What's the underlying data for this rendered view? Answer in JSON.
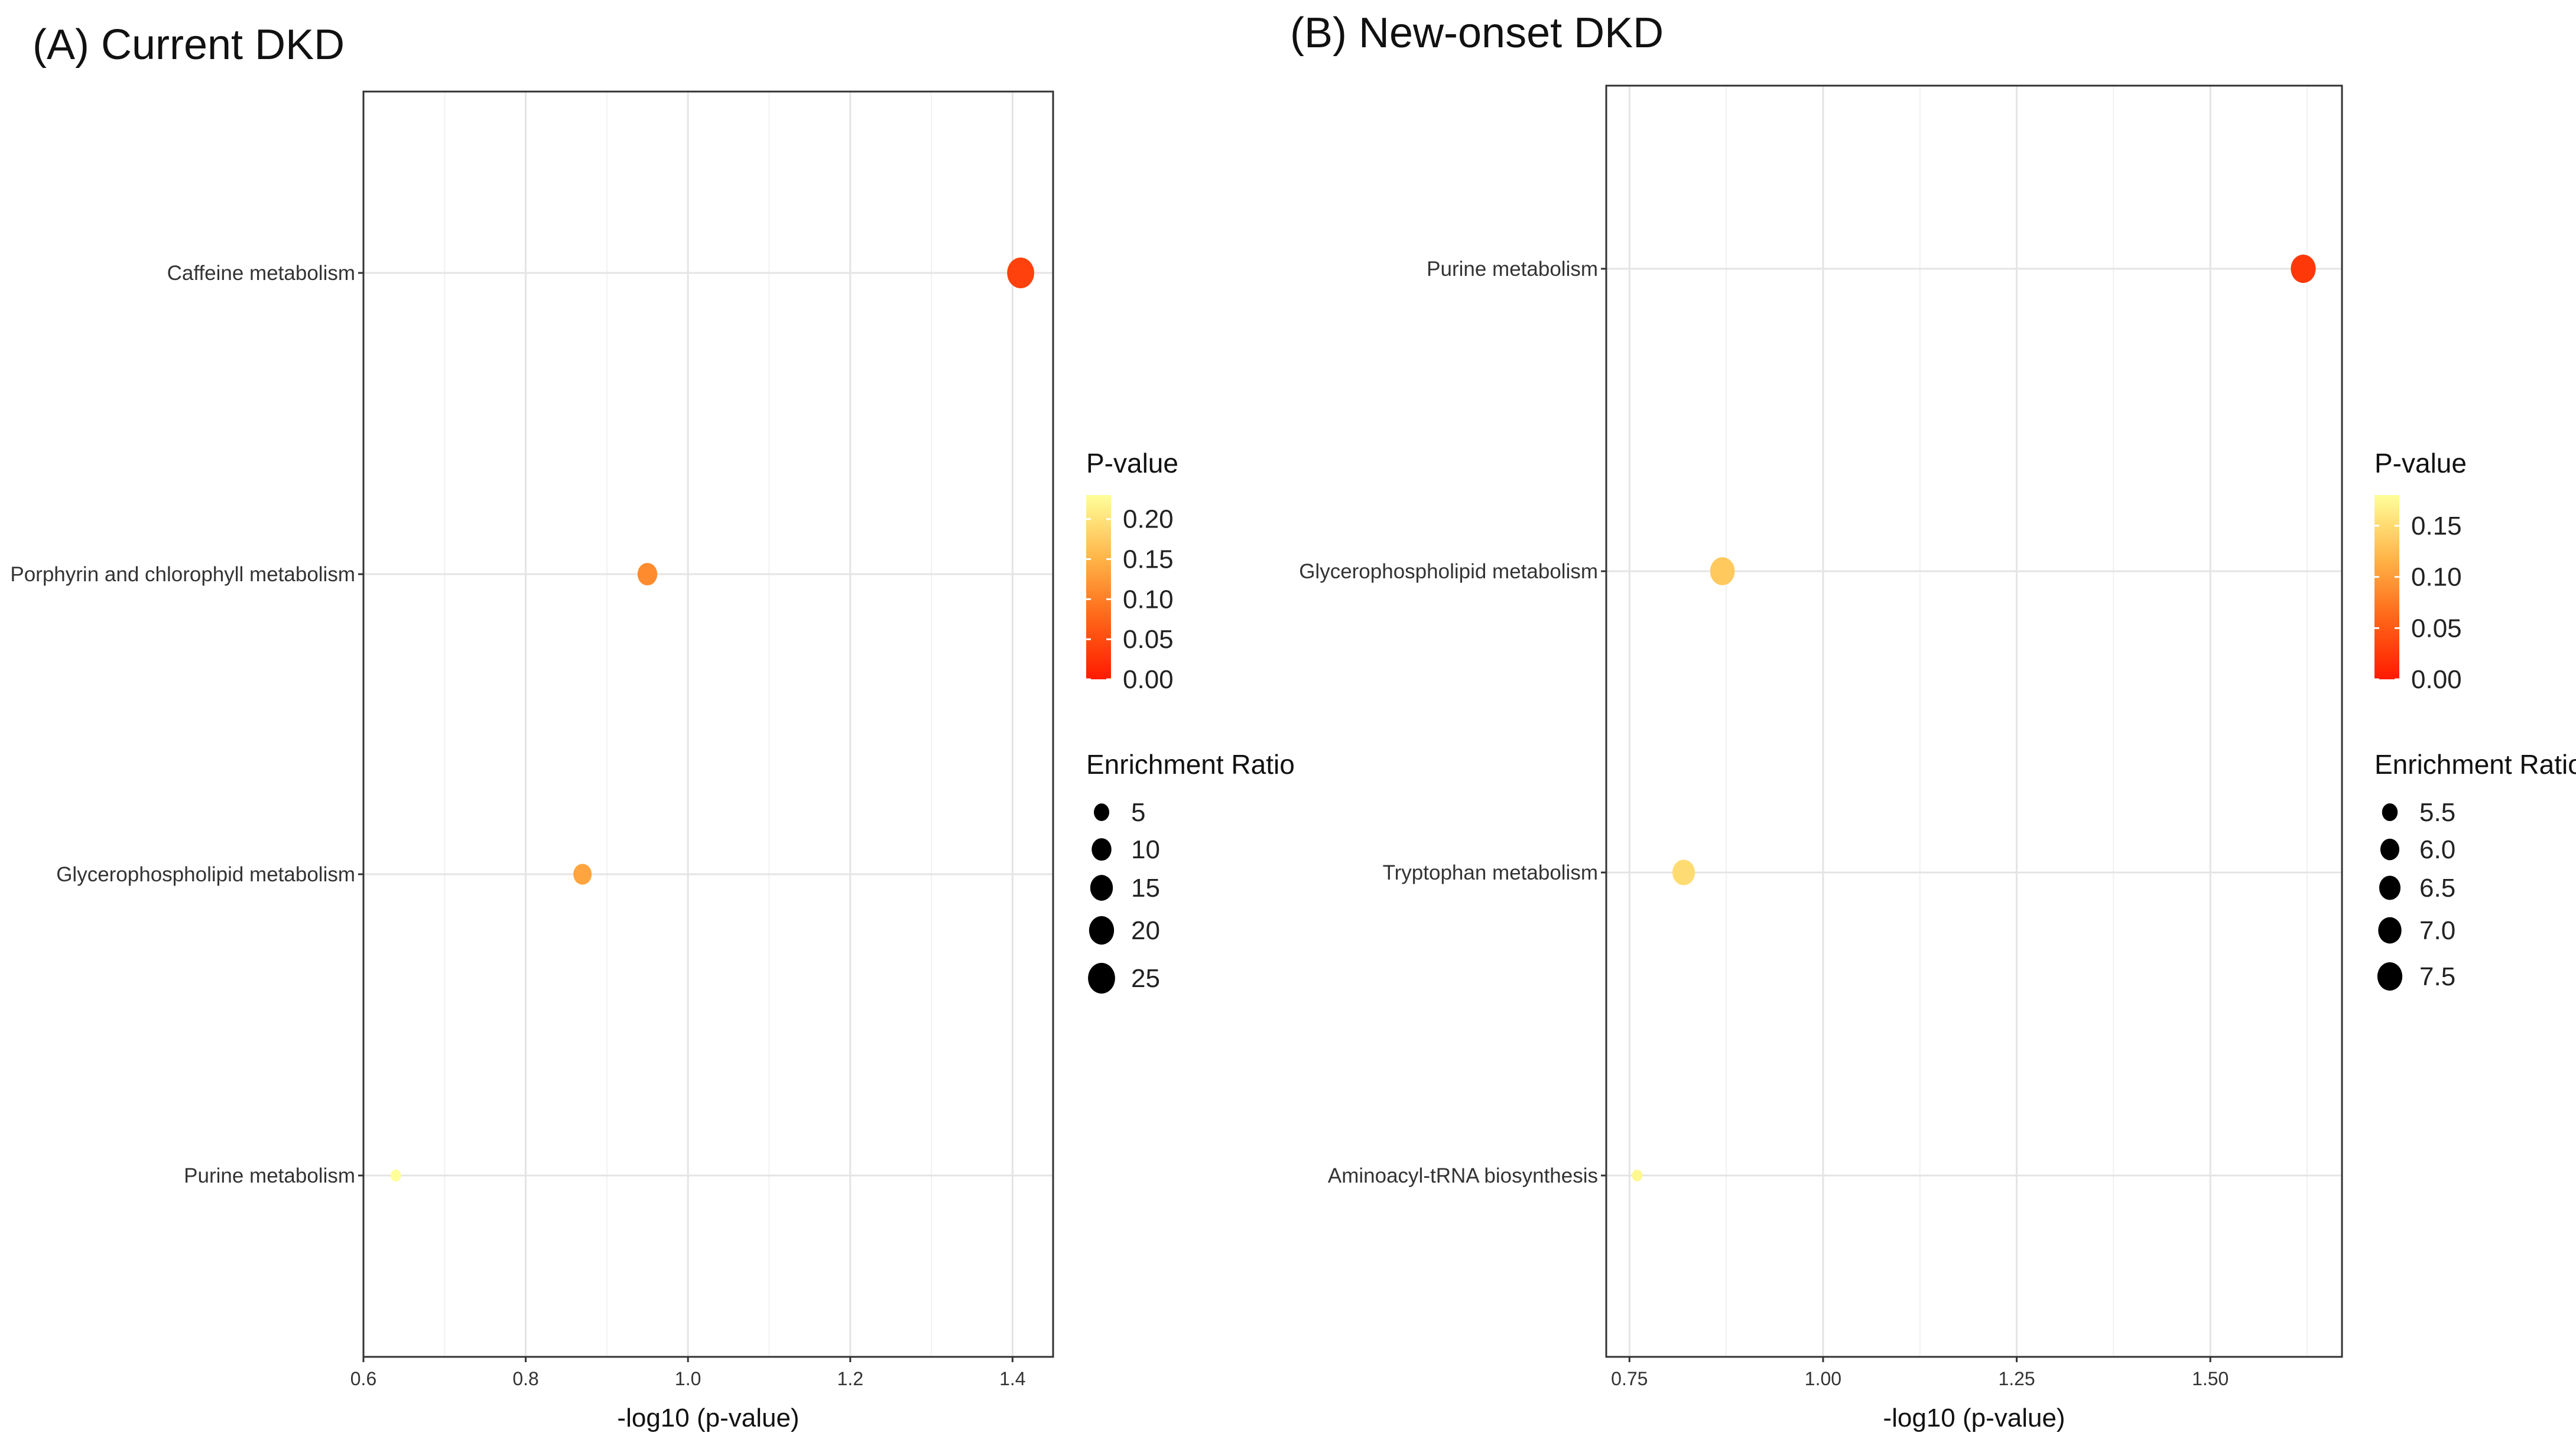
{
  "chart_data": [
    {
      "type": "scatter",
      "title": "(A) Current DKD",
      "xlabel": "-log10 (p-value)",
      "ylabel": "",
      "xlim": [
        0.6,
        1.45
      ],
      "xticks": [
        0.6,
        0.8,
        1.0,
        1.2,
        1.4
      ],
      "xtick_labels": [
        "0.6",
        "0.8",
        "1.0",
        "1.2",
        "1.4"
      ],
      "categories": [
        "Caffeine metabolism",
        "Porphyrin and chlorophyll metabolism",
        "Glycerophospholipid metabolism",
        "Purine metabolism"
      ],
      "points": [
        {
          "pathway": "Caffeine metabolism",
          "neg_log10_p": 1.41,
          "p_value": 0.039,
          "enrichment_ratio": 25
        },
        {
          "pathway": "Porphyrin and chlorophyll metabolism",
          "neg_log10_p": 0.95,
          "p_value": 0.112,
          "enrichment_ratio": 10
        },
        {
          "pathway": "Glycerophospholipid metabolism",
          "neg_log10_p": 0.87,
          "p_value": 0.135,
          "enrichment_ratio": 8
        },
        {
          "pathway": "Purine metabolism",
          "neg_log10_p": 0.64,
          "p_value": 0.23,
          "enrichment_ratio": 3
        }
      ],
      "color_legend": {
        "title": "P-value",
        "ticks": [
          0.0,
          0.05,
          0.1,
          0.15,
          0.2
        ],
        "tick_labels": [
          "0.00",
          "0.05",
          "0.10",
          "0.15",
          "0.20"
        ],
        "range": [
          0.0,
          0.23
        ],
        "low_color": "#ff1a00",
        "high_color": "#ffff99"
      },
      "size_legend": {
        "title": "Enrichment Ratio",
        "values": [
          5,
          10,
          15,
          20,
          25
        ],
        "labels": [
          "5",
          "10",
          "15",
          "20",
          "25"
        ],
        "range": [
          3,
          25
        ]
      }
    },
    {
      "type": "scatter",
      "title": "(B) New-onset DKD",
      "xlabel": "-log10 (p-value)",
      "ylabel": "",
      "xlim": [
        0.72,
        1.67
      ],
      "xticks": [
        0.75,
        1.0,
        1.25,
        1.5
      ],
      "xtick_labels": [
        "0.75",
        "1.00",
        "1.25",
        "1.50"
      ],
      "categories": [
        "Purine metabolism",
        "Glycerophospholipid metabolism",
        "Tryptophan metabolism",
        "Aminoacyl-tRNA biosynthesis"
      ],
      "points": [
        {
          "pathway": "Purine metabolism",
          "neg_log10_p": 1.62,
          "p_value": 0.024,
          "enrichment_ratio": 7.5
        },
        {
          "pathway": "Glycerophospholipid metabolism",
          "neg_log10_p": 0.87,
          "p_value": 0.135,
          "enrichment_ratio": 7.4
        },
        {
          "pathway": "Tryptophan metabolism",
          "neg_log10_p": 0.82,
          "p_value": 0.151,
          "enrichment_ratio": 6.8
        },
        {
          "pathway": "Aminoacyl-tRNA biosynthesis",
          "neg_log10_p": 0.76,
          "p_value": 0.174,
          "enrichment_ratio": 5.2
        }
      ],
      "color_legend": {
        "title": "P-value",
        "ticks": [
          0.0,
          0.05,
          0.1,
          0.15
        ],
        "tick_labels": [
          "0.00",
          "0.05",
          "0.10",
          "0.15"
        ],
        "range": [
          0.0,
          0.18
        ],
        "low_color": "#ff1a00",
        "high_color": "#ffff99"
      },
      "size_legend": {
        "title": "Enrichment Ratio",
        "values": [
          5.5,
          6.0,
          6.5,
          7.0,
          7.5
        ],
        "labels": [
          "5.5",
          "6.0",
          "6.5",
          "7.0",
          "7.5"
        ],
        "range": [
          5.2,
          7.5
        ]
      }
    }
  ]
}
